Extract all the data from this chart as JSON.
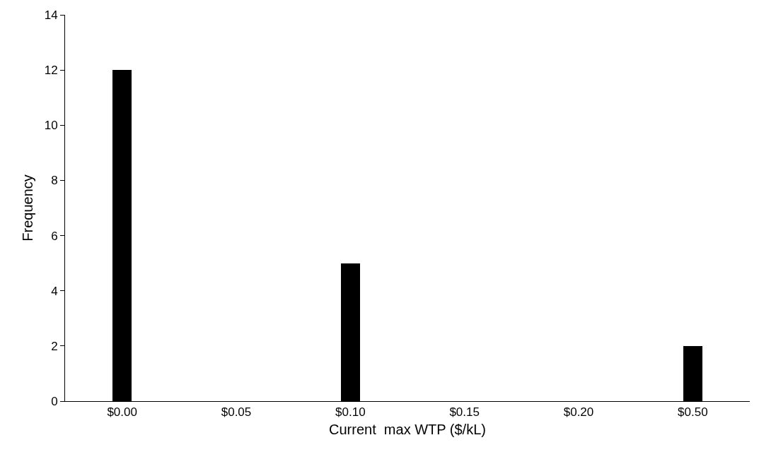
{
  "chart_data": {
    "type": "bar",
    "xlabel": "Current  max WTP ($/kL)",
    "ylabel": "Frequency",
    "categories": [
      "$0.00",
      "$0.05",
      "$0.10",
      "$0.15",
      "$0.20",
      "$0.50"
    ],
    "values": [
      12,
      0,
      5,
      0,
      0,
      2
    ],
    "color": "#000000",
    "ylim": [
      0,
      14
    ],
    "yticks": [
      0,
      2,
      4,
      6,
      8,
      10,
      12,
      14
    ]
  }
}
